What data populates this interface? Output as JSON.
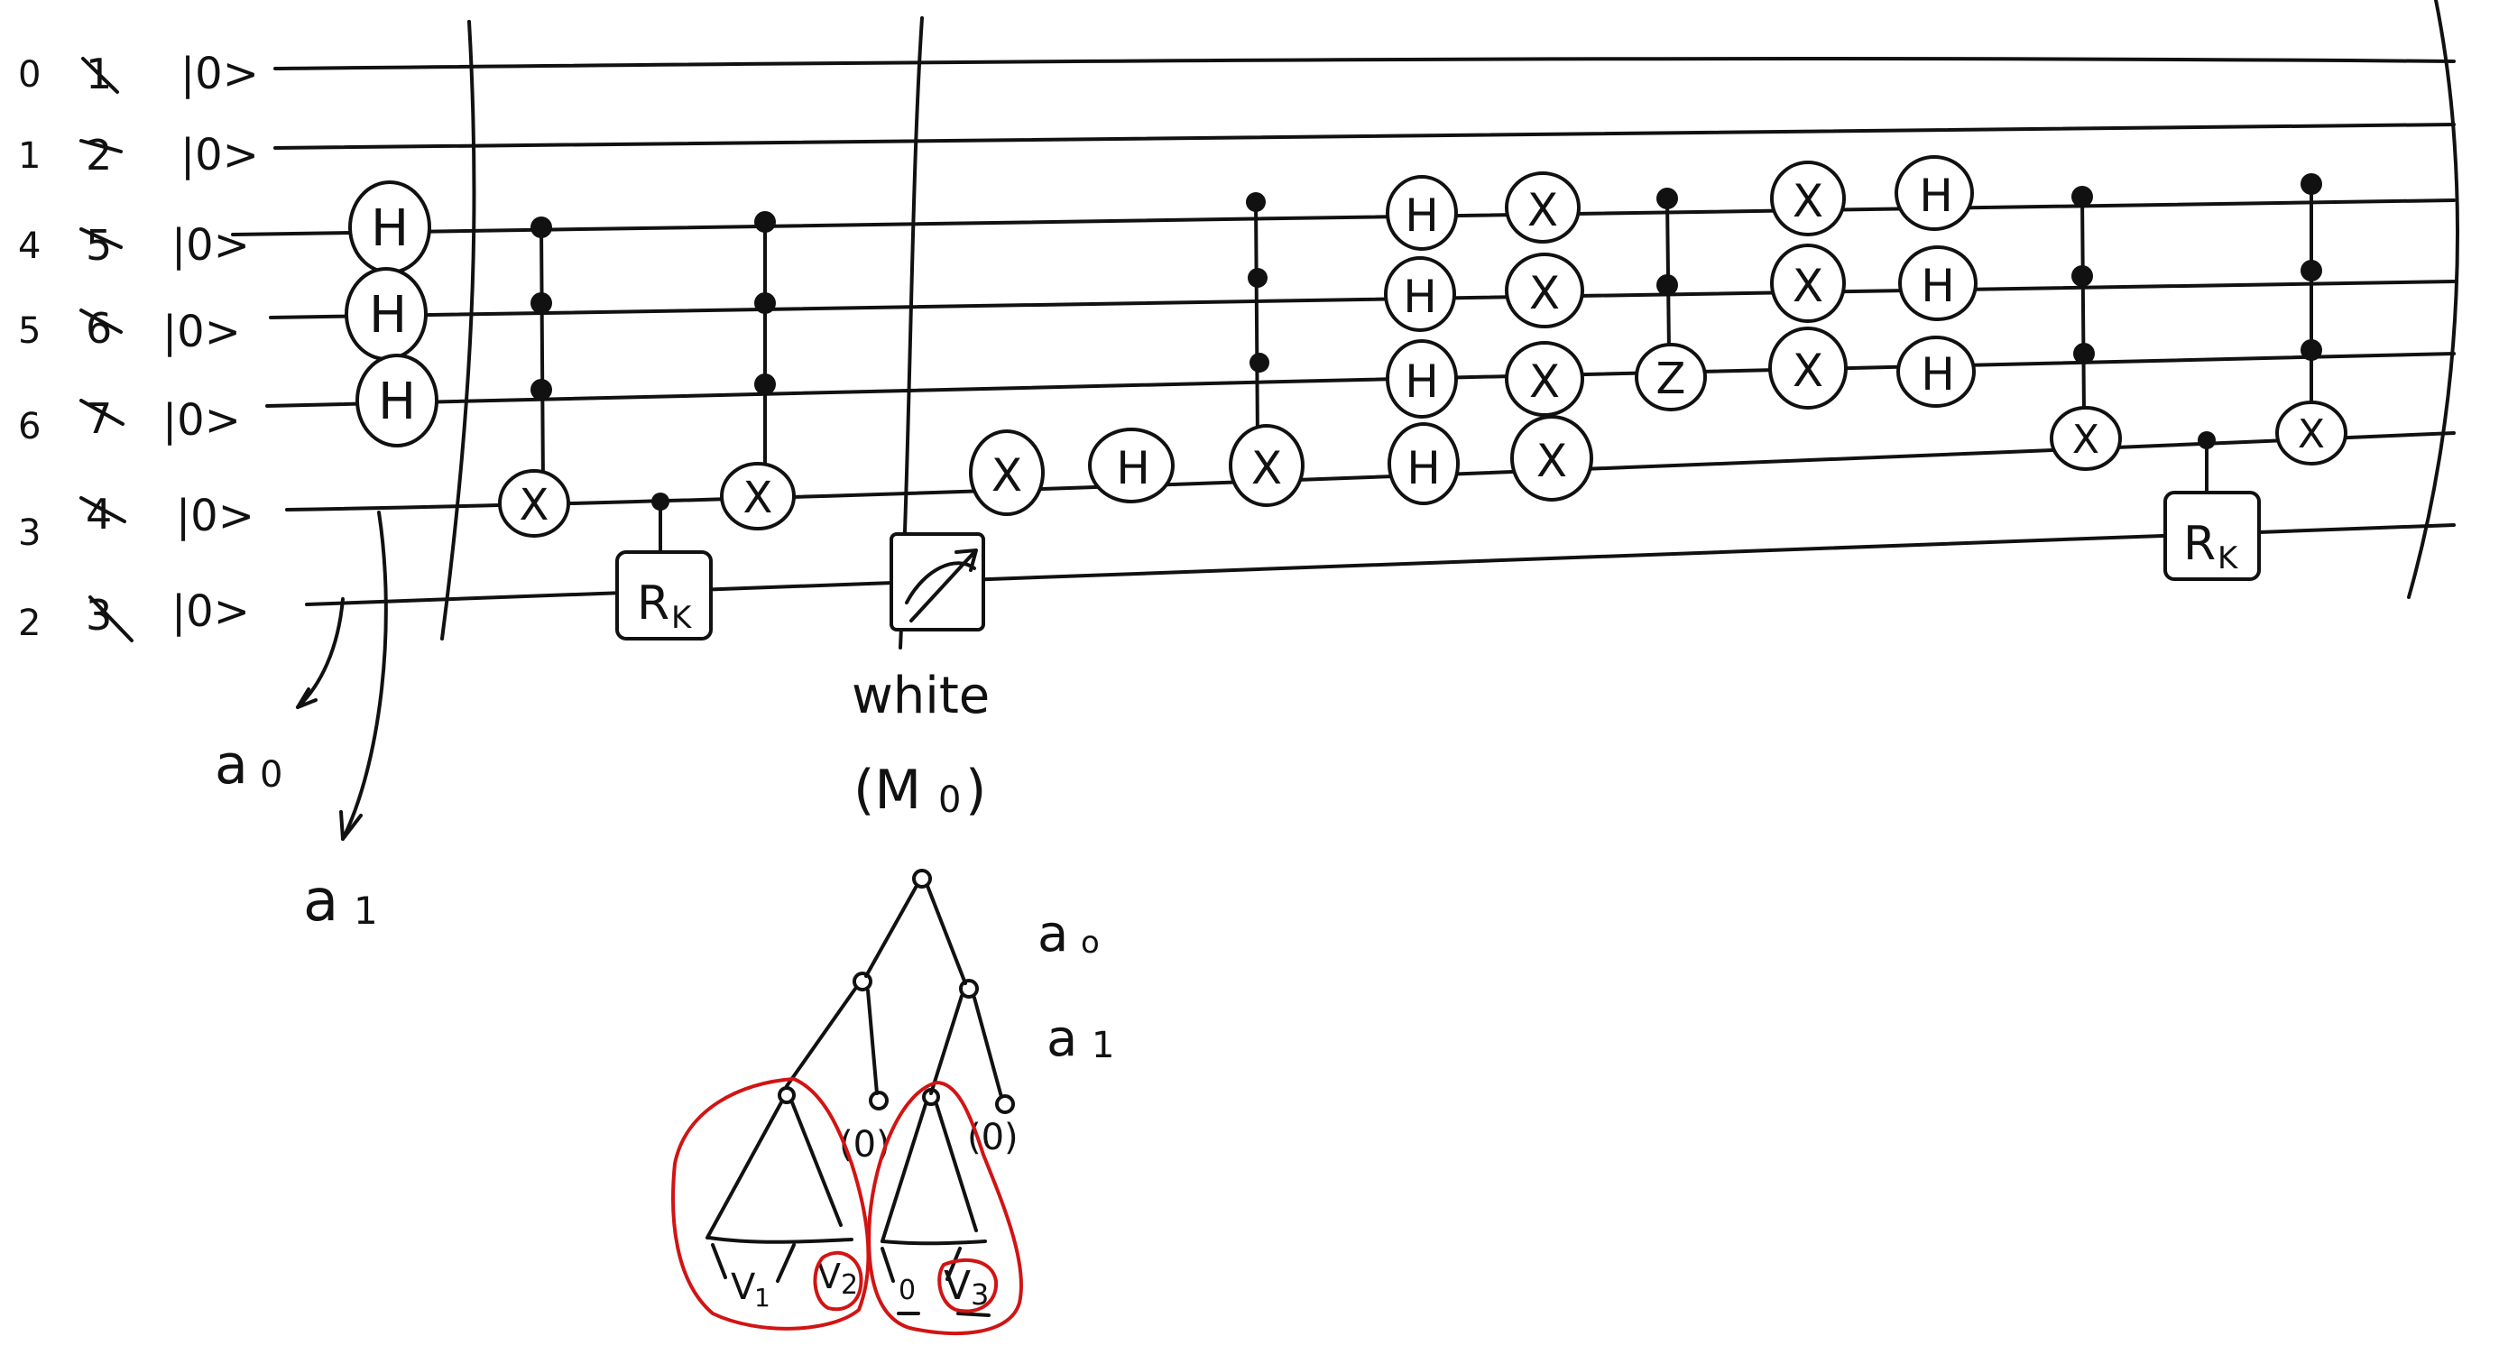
{
  "wires": [
    {
      "index": "0",
      "old": "1",
      "ket": "|0>"
    },
    {
      "index": "1",
      "old": "2",
      "ket": "|0>"
    },
    {
      "index": "4",
      "old": "5",
      "ket": "|0>"
    },
    {
      "index": "5",
      "old": "6",
      "ket": "|0>"
    },
    {
      "index": "6",
      "old": "7",
      "ket": "|0>"
    },
    {
      "index": "3",
      "old": "4",
      "ket": "|0>"
    },
    {
      "index": "2",
      "old": "3",
      "ket": "|0>"
    }
  ],
  "gates": {
    "H": "H",
    "X": "X",
    "Z": "Z",
    "Rk": "R",
    "Rk_sub": "K"
  },
  "annotations": {
    "a0_circuit": "a",
    "a0_circuit_sub": "0",
    "a1_circuit": "a",
    "a1_circuit_sub": "1",
    "white": "white",
    "m0": "(M",
    "m0_sub": "0",
    "m0_close": ")"
  },
  "tree": {
    "a0": "a",
    "a0_sub": "o",
    "a1": "a",
    "a1_sub": "1",
    "zero_left": "(0)",
    "zero_right": "(0)",
    "v1": "V",
    "v1_sub": "1",
    "v2": "V",
    "v2_sub": "2",
    "zero_leaf": "0",
    "v3": "V",
    "v3_sub": "3"
  }
}
